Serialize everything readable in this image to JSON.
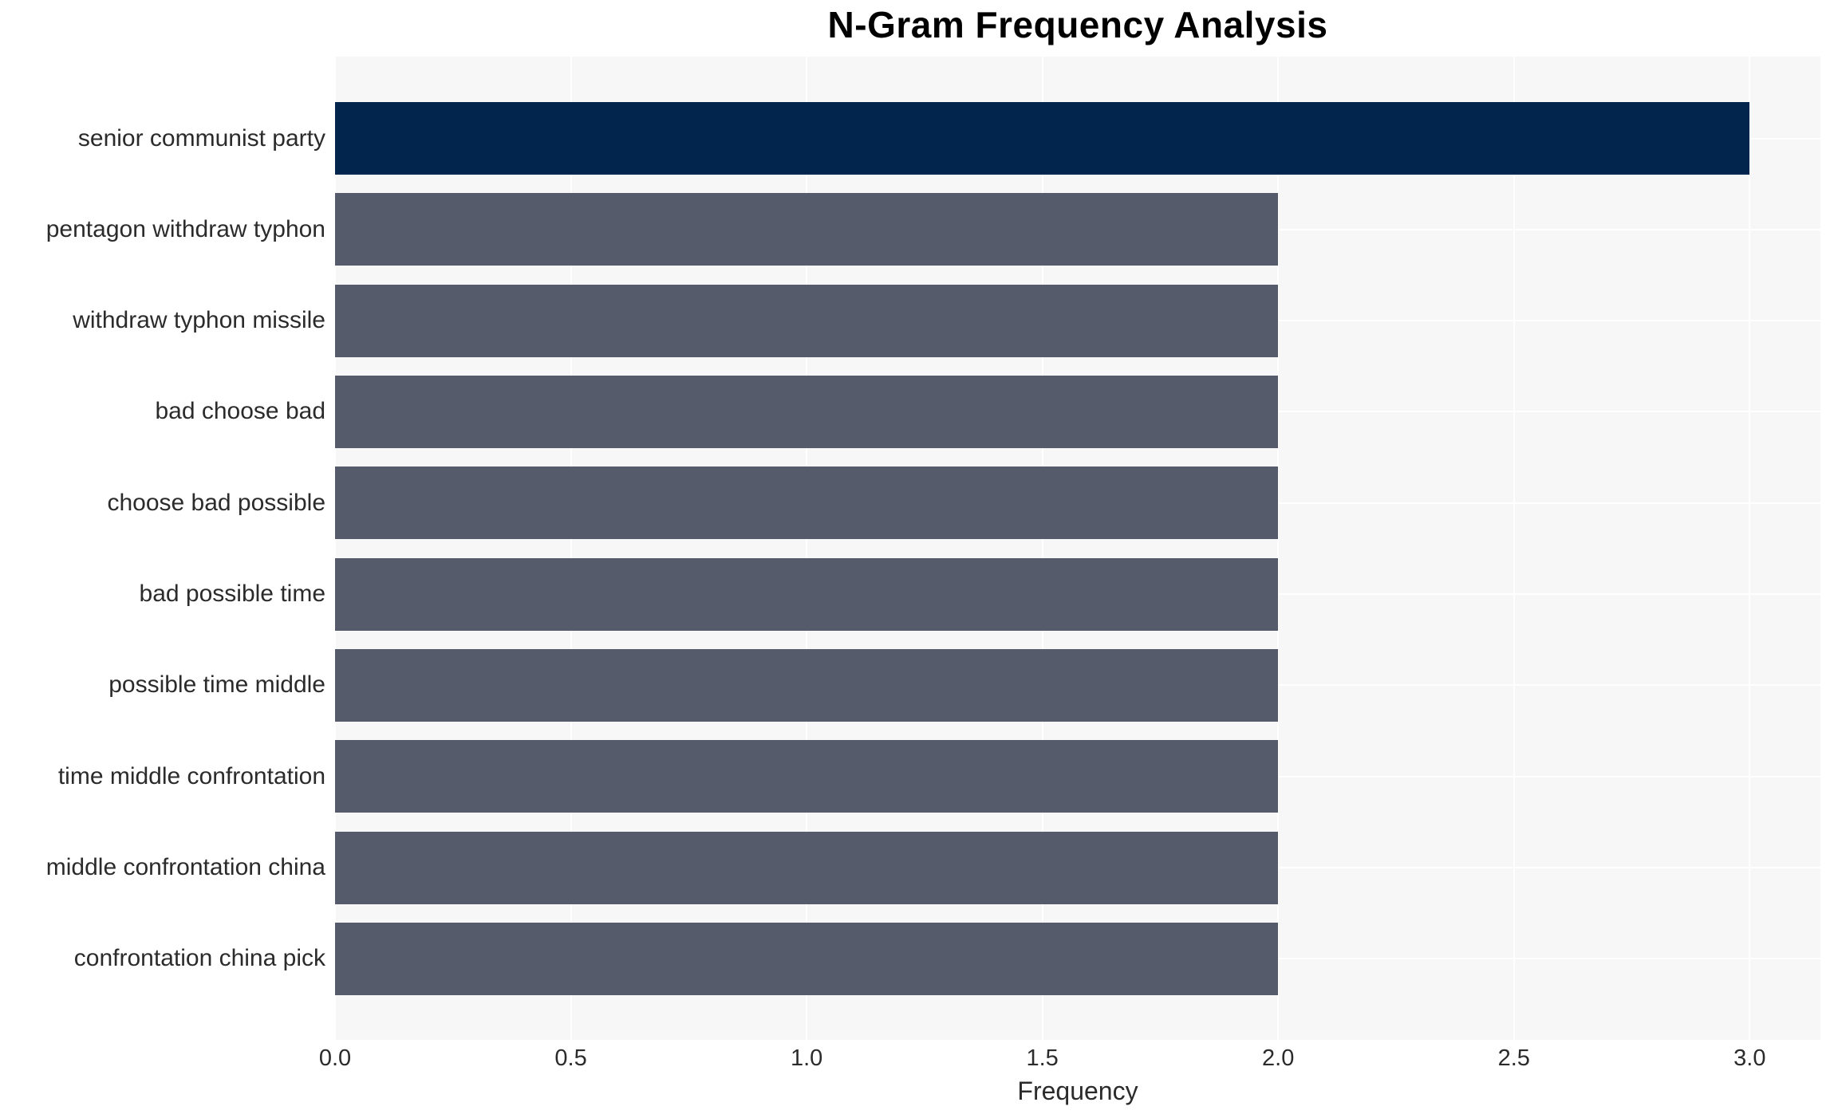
{
  "title": "N-Gram Frequency Analysis",
  "chart_data": {
    "type": "bar",
    "orientation": "horizontal",
    "title": "N-Gram Frequency Analysis",
    "xlabel": "Frequency",
    "ylabel": "",
    "categories": [
      "senior communist party",
      "pentagon withdraw typhon",
      "withdraw typhon missile",
      "bad choose bad",
      "choose bad possible",
      "bad possible time",
      "possible time middle",
      "time middle confrontation",
      "middle confrontation china",
      "confrontation china pick"
    ],
    "values": [
      3,
      2,
      2,
      2,
      2,
      2,
      2,
      2,
      2,
      2
    ],
    "xlim": [
      0,
      3.15
    ],
    "xticks": [
      "0.0",
      "0.5",
      "1.0",
      "1.5",
      "2.0",
      "2.5",
      "3.0"
    ],
    "grid": true,
    "legend": "none",
    "highlight_index": 0,
    "colors": {
      "highlight_bar": "#02254e",
      "default_bar": "#565b6b",
      "plot_background": "#f7f7f8",
      "grid_line": "#ffffff",
      "text": "#2b2b2b",
      "title_text": "#000000"
    }
  }
}
